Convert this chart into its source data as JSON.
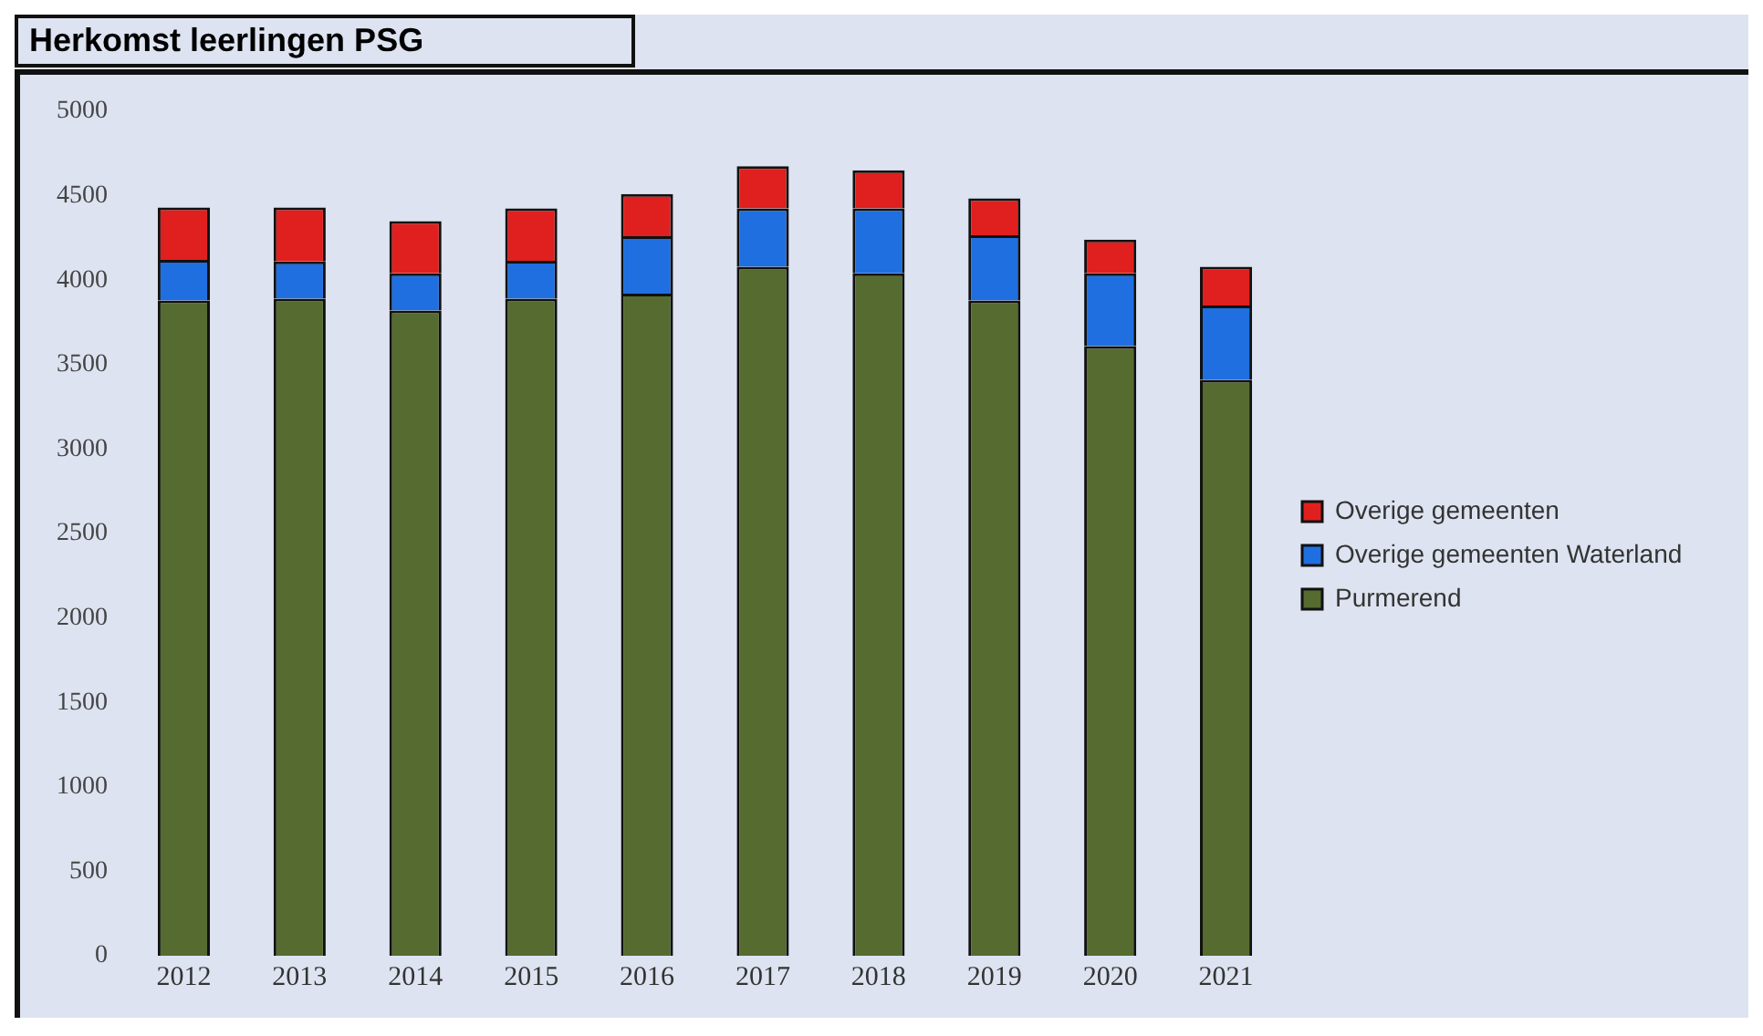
{
  "chart_data": {
    "type": "bar",
    "title": "Herkomst leerlingen PSG",
    "stacked": true,
    "categories": [
      "2012",
      "2013",
      "2014",
      "2015",
      "2016",
      "2017",
      "2018",
      "2019",
      "2020",
      "2021"
    ],
    "series": [
      {
        "name": "Purmerend",
        "color": "#556b2f",
        "values": [
          3880,
          3890,
          3820,
          3890,
          3920,
          4080,
          4040,
          3880,
          3610,
          3410
        ]
      },
      {
        "name": "Overige gemeenten Waterland",
        "color": "#1f6fe0",
        "values": [
          240,
          220,
          220,
          225,
          340,
          345,
          385,
          385,
          430,
          440
        ]
      },
      {
        "name": "Overige gemeenten",
        "color": "#e0201e",
        "values": [
          310,
          320,
          310,
          310,
          250,
          250,
          225,
          220,
          200,
          230
        ]
      }
    ],
    "ylim": [
      0,
      5000
    ],
    "yticks": [
      0,
      500,
      1000,
      1500,
      2000,
      2500,
      3000,
      3500,
      4000,
      4500,
      5000
    ],
    "grid": false,
    "legend": "right"
  }
}
